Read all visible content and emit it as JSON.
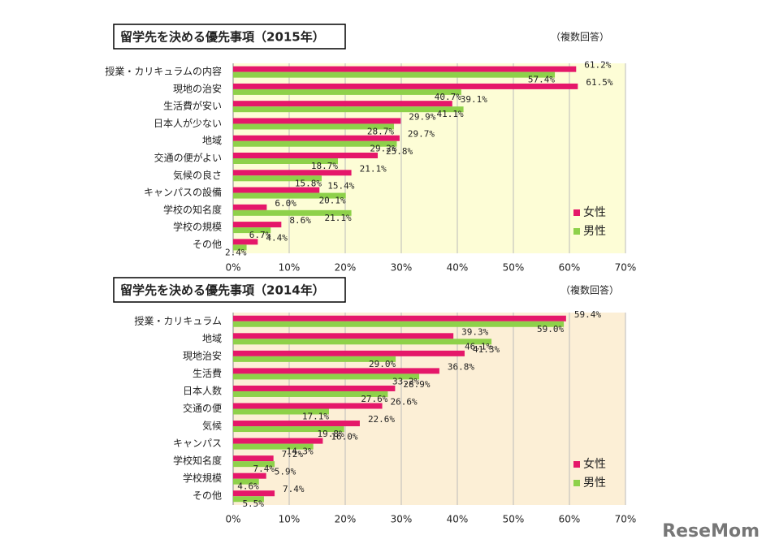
{
  "chart_data": [
    {
      "type": "bar",
      "orientation": "horizontal",
      "title": "留学先を決める優先事項（2015年）",
      "note": "（複数回答）",
      "categories": [
        "授業・カリキュラムの内容",
        "現地の治安",
        "生活費が安い",
        "日本人が少ない",
        "地域",
        "交通の便がよい",
        "気候の良さ",
        "キャンパスの設備",
        "学校の知名度",
        "学校の規模",
        "その他"
      ],
      "series": [
        {
          "name": "女性",
          "color": "#e5176a",
          "values": [
            61.2,
            61.5,
            39.1,
            29.9,
            29.7,
            25.8,
            21.1,
            15.4,
            6.0,
            8.6,
            4.4
          ],
          "value_labels": [
            "61.2%",
            "61.5%",
            "39.1%",
            "29.9%",
            "29.7%",
            "25.8%",
            "21.1%",
            "15.4%",
            "6.0%",
            "8.6%",
            "4.4%"
          ]
        },
        {
          "name": "男性",
          "color": "#8ed14a",
          "values": [
            57.4,
            40.7,
            41.1,
            28.7,
            29.2,
            18.7,
            15.8,
            20.1,
            21.1,
            6.7,
            2.4
          ],
          "value_labels": [
            "57.4%",
            "40.7%",
            "41.1%",
            "28.7%",
            "29.2%",
            "18.7%",
            "15.8%",
            "20.1%",
            "21.1%",
            "6.7%",
            "2.4%"
          ]
        }
      ],
      "xlim": [
        0,
        70
      ],
      "xticks": [
        {
          "value": 0,
          "label": "0%"
        },
        {
          "value": 10,
          "label": "10%"
        },
        {
          "value": 20,
          "label": "20%"
        },
        {
          "value": 30,
          "label": "30%"
        },
        {
          "value": 40,
          "label": "40%"
        },
        {
          "value": 50,
          "label": "50%"
        },
        {
          "value": 60,
          "label": "60%"
        },
        {
          "value": 70,
          "label": "70%"
        }
      ],
      "grid": true,
      "legend": "lower right",
      "background": "#fdfdd6"
    },
    {
      "type": "bar",
      "orientation": "horizontal",
      "title": "留学先を決める優先事項（2014年）",
      "note": "（複数回答）",
      "categories": [
        "授業・カリキュラム",
        "地域",
        "現地治安",
        "生活費",
        "日本人数",
        "交通の便",
        "気候",
        "キャンパス",
        "学校知名度",
        "学校規模",
        "その他"
      ],
      "series": [
        {
          "name": "女性",
          "color": "#e5176a",
          "values": [
            59.4,
            39.3,
            41.3,
            36.8,
            28.9,
            26.6,
            22.6,
            16.0,
            7.2,
            5.9,
            7.4
          ],
          "value_labels": [
            "59.4%",
            "39.3%",
            "41.3%",
            "36.8%",
            "28.9%",
            "26.6%",
            "22.6%",
            "16.0%",
            "7.2%",
            "5.9%",
            "7.4%"
          ]
        },
        {
          "name": "男性",
          "color": "#8ed14a",
          "values": [
            59.0,
            46.1,
            29.0,
            33.2,
            27.6,
            17.1,
            19.8,
            14.3,
            7.4,
            4.6,
            5.5
          ],
          "value_labels": [
            "59.0%",
            "46.1%",
            "29.0%",
            "33.2%",
            "27.6%",
            "17.1%",
            "19.8%",
            "14.3%",
            "7.4%",
            "4.6%",
            "5.5%"
          ]
        }
      ],
      "xlim": [
        0,
        70
      ],
      "xticks": [
        {
          "value": 0,
          "label": "0%"
        },
        {
          "value": 10,
          "label": "10%"
        },
        {
          "value": 20,
          "label": "20%"
        },
        {
          "value": 30,
          "label": "30%"
        },
        {
          "value": 40,
          "label": "40%"
        },
        {
          "value": 50,
          "label": "50%"
        },
        {
          "value": 60,
          "label": "60%"
        },
        {
          "value": 70,
          "label": "70%"
        }
      ],
      "grid": true,
      "legend": "lower right",
      "background": "#fcefd6"
    }
  ],
  "watermark": "ReseMom"
}
